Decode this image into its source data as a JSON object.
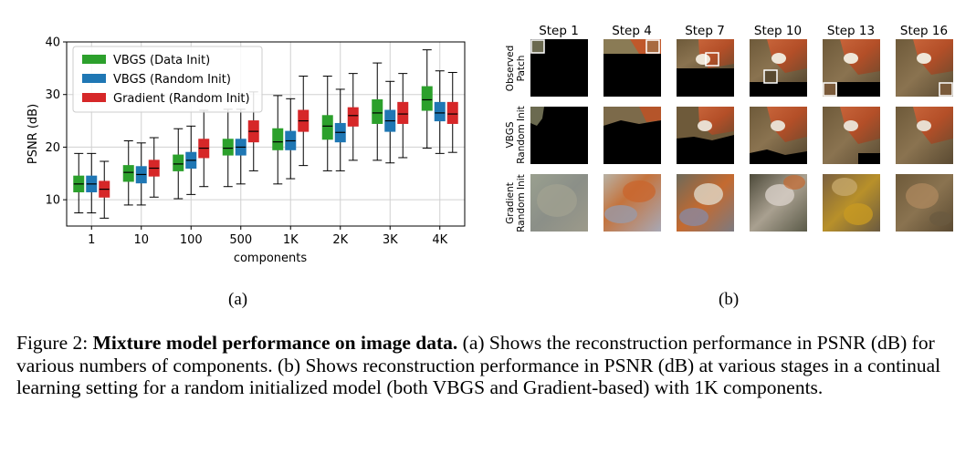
{
  "figure": {
    "subfigure_a_label": "(a)",
    "subfigure_b_label": "(b)",
    "caption_prefix": "Figure 2:",
    "caption_bold": "Mixture model performance on image data.",
    "caption_rest": " (a) Shows the reconstruction performance in PSNR (dB) for various numbers of components. (b) Shows reconstruction performance in PSNR (dB) at various stages in a continual learning setting for a random initialized model (both VBGS and Gradient-based) with 1K components."
  },
  "chart_data": {
    "type": "boxplot",
    "title": "",
    "xlabel": "components",
    "ylabel": "PSNR (dB)",
    "ylim": [
      5,
      40
    ],
    "yticks": [
      10,
      20,
      30,
      40
    ],
    "categories": [
      "1",
      "10",
      "100",
      "500",
      "1K",
      "2K",
      "3K",
      "4K"
    ],
    "grid": true,
    "legend_position": "top-left",
    "series": [
      {
        "name": "VBGS (Data Init)",
        "color": "#2ca02c",
        "boxes": [
          {
            "whislo": 7.5,
            "q1": 11.5,
            "med": 13.0,
            "q3": 14.5,
            "whishi": 18.8
          },
          {
            "whislo": 9.0,
            "q1": 13.5,
            "med": 15.2,
            "q3": 16.5,
            "whishi": 21.2
          },
          {
            "whislo": 10.2,
            "q1": 15.5,
            "med": 16.8,
            "q3": 18.5,
            "whishi": 23.5
          },
          {
            "whislo": 12.5,
            "q1": 18.5,
            "med": 19.8,
            "q3": 21.5,
            "whishi": 27.2
          },
          {
            "whislo": 13.0,
            "q1": 19.5,
            "med": 21.0,
            "q3": 23.5,
            "whishi": 29.8
          },
          {
            "whislo": 15.5,
            "q1": 21.5,
            "med": 24.0,
            "q3": 26.0,
            "whishi": 33.5
          },
          {
            "whislo": 17.5,
            "q1": 24.5,
            "med": 26.5,
            "q3": 29.0,
            "whishi": 36.0
          },
          {
            "whislo": 19.8,
            "q1": 27.0,
            "med": 29.0,
            "q3": 31.5,
            "whishi": 38.5
          }
        ]
      },
      {
        "name": "VBGS (Random Init)",
        "color": "#1f77b4",
        "boxes": [
          {
            "whislo": 7.5,
            "q1": 11.5,
            "med": 13.0,
            "q3": 14.5,
            "whishi": 18.8
          },
          {
            "whislo": 9.0,
            "q1": 13.2,
            "med": 14.8,
            "q3": 16.3,
            "whishi": 20.8
          },
          {
            "whislo": 11.0,
            "q1": 16.0,
            "med": 17.5,
            "q3": 19.0,
            "whishi": 24.0
          },
          {
            "whislo": 13.0,
            "q1": 18.5,
            "med": 20.0,
            "q3": 21.5,
            "whishi": 27.2
          },
          {
            "whislo": 14.0,
            "q1": 19.5,
            "med": 21.2,
            "q3": 23.0,
            "whishi": 29.2
          },
          {
            "whislo": 15.5,
            "q1": 21.0,
            "med": 22.8,
            "q3": 24.5,
            "whishi": 31.0
          },
          {
            "whislo": 17.0,
            "q1": 23.0,
            "med": 25.0,
            "q3": 27.0,
            "whishi": 32.5
          },
          {
            "whislo": 18.8,
            "q1": 25.0,
            "med": 26.5,
            "q3": 28.5,
            "whishi": 34.5
          }
        ]
      },
      {
        "name": "Gradient (Random Init)",
        "color": "#d62728",
        "boxes": [
          {
            "whislo": 6.5,
            "q1": 10.5,
            "med": 12.0,
            "q3": 13.5,
            "whishi": 17.3
          },
          {
            "whislo": 10.5,
            "q1": 14.5,
            "med": 16.0,
            "q3": 17.5,
            "whishi": 21.8
          },
          {
            "whislo": 12.5,
            "q1": 18.0,
            "med": 19.8,
            "q3": 21.5,
            "whishi": 27.0
          },
          {
            "whislo": 15.5,
            "q1": 21.0,
            "med": 23.0,
            "q3": 25.0,
            "whishi": 30.5
          },
          {
            "whislo": 16.5,
            "q1": 23.0,
            "med": 25.0,
            "q3": 27.0,
            "whishi": 33.5
          },
          {
            "whislo": 17.5,
            "q1": 24.0,
            "med": 26.0,
            "q3": 27.5,
            "whishi": 34.0
          },
          {
            "whislo": 18.0,
            "q1": 24.5,
            "med": 26.3,
            "q3": 28.5,
            "whishi": 34.0
          },
          {
            "whislo": 19.0,
            "q1": 24.5,
            "med": 26.3,
            "q3": 28.5,
            "whishi": 34.2
          }
        ]
      }
    ]
  },
  "image_grid": {
    "steps": [
      "Step 1",
      "Step 4",
      "Step 7",
      "Step 10",
      "Step 13",
      "Step 16"
    ],
    "rows": [
      {
        "label_line1": "Observed",
        "label_line2": "Patch"
      },
      {
        "label_line1": "VBGS",
        "label_line2": "Random Init"
      },
      {
        "label_line1": "Gradient",
        "label_line2": "Random Init"
      }
    ]
  }
}
